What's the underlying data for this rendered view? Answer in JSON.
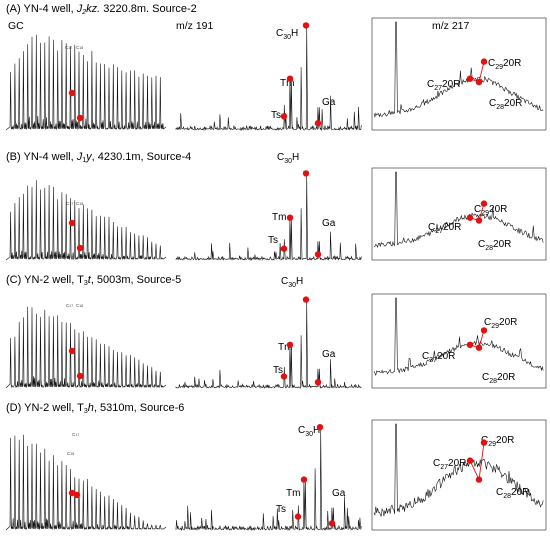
{
  "columns": [
    {
      "label": "GC"
    },
    {
      "label": "m/z 191"
    },
    {
      "label": "m/z 217"
    }
  ],
  "chart_data": [
    {
      "type": "line",
      "title_parts": {
        "pre": "(A) YN-4 well, ",
        "formation_main": "J",
        "formation_sub": "2",
        "formation_rest": "kz.",
        "post": "  3220.8m.  Source-2"
      },
      "panels": [
        {
          "trace": "GC",
          "annotations": [
            {
              "text": "C",
              "sub": "17"
            },
            {
              "text": "C",
              "sub": "18"
            }
          ]
        },
        {
          "trace": "m/z 191",
          "annotations": [
            {
              "text": "C",
              "sub": "30",
              "rest": "H"
            },
            {
              "text": "Tm"
            },
            {
              "text": "Ts"
            },
            {
              "text": "Ga"
            }
          ]
        },
        {
          "trace": "m/z 217",
          "annotations": [
            {
              "text": "C",
              "sub": "27",
              "rest": "20R"
            },
            {
              "text": "C",
              "sub": "29",
              "rest": "20R"
            },
            {
              "text": "C",
              "sub": "28",
              "rest": "20R"
            }
          ]
        }
      ]
    },
    {
      "type": "line",
      "title_parts": {
        "pre": "(B) YN-4 well, ",
        "formation_main": "J",
        "formation_sub": "1",
        "formation_rest": "y",
        "post": ", 4230.1m, Source-4"
      },
      "panels": [
        {
          "trace": "GC",
          "annotations": [
            {
              "text": "C",
              "sub": "17"
            },
            {
              "text": "C",
              "sub": "18"
            }
          ]
        },
        {
          "trace": "m/z 191",
          "annotations": [
            {
              "text": "C",
              "sub": "30",
              "rest": "H"
            },
            {
              "text": "Tm"
            },
            {
              "text": "Ts"
            },
            {
              "text": "Ga"
            }
          ]
        },
        {
          "trace": "m/z 217",
          "annotations": [
            {
              "text": "C",
              "sub": "27",
              "rest": "20R"
            },
            {
              "text": "C",
              "sub": "29",
              "rest": "20R"
            },
            {
              "text": "C",
              "sub": "28",
              "rest": "20R"
            }
          ]
        }
      ]
    },
    {
      "type": "line",
      "title_parts": {
        "pre": "(C) YN-2 well, ",
        "formation_main": "T",
        "formation_sub": "3",
        "formation_rest": "t",
        "post": ", 5003m, Source-5"
      },
      "panels": [
        {
          "trace": "GC",
          "annotations": [
            {
              "text": "C",
              "sub": "17"
            },
            {
              "text": "C",
              "sub": "18"
            }
          ]
        },
        {
          "trace": "m/z 191",
          "annotations": [
            {
              "text": "C",
              "sub": "30",
              "rest": "H"
            },
            {
              "text": "Tm"
            },
            {
              "text": "Ts"
            },
            {
              "text": "Ga"
            }
          ]
        },
        {
          "trace": "m/z 217",
          "annotations": [
            {
              "text": "C",
              "sub": "27",
              "rest": "20R"
            },
            {
              "text": "C",
              "sub": "29",
              "rest": "20R"
            },
            {
              "text": "C",
              "sub": "28",
              "rest": "20R"
            }
          ]
        }
      ]
    },
    {
      "type": "line",
      "title_parts": {
        "pre": "(D) YN-2 well, ",
        "formation_main": "T",
        "formation_sub": "3",
        "formation_rest": "h",
        "post": ", 5310m, Source-6"
      },
      "panels": [
        {
          "trace": "GC",
          "annotations": [
            {
              "text": "C",
              "sub": "17"
            },
            {
              "text": "C",
              "sub": "18"
            }
          ]
        },
        {
          "trace": "m/z 191",
          "annotations": [
            {
              "text": "C",
              "sub": "30",
              "rest": "H"
            },
            {
              "text": "Tm"
            },
            {
              "text": "Ts"
            },
            {
              "text": "Ga"
            }
          ]
        },
        {
          "trace": "m/z 217",
          "annotations": [
            {
              "text": "C",
              "sub": "27",
              "rest": "20R"
            },
            {
              "text": "C",
              "sub": "29",
              "rest": "20R"
            },
            {
              "text": "C",
              "sub": "28",
              "rest": "20R"
            }
          ]
        }
      ]
    }
  ],
  "colors": {
    "trace": "#111111",
    "marker": "#e51010",
    "frame": "#222222"
  }
}
